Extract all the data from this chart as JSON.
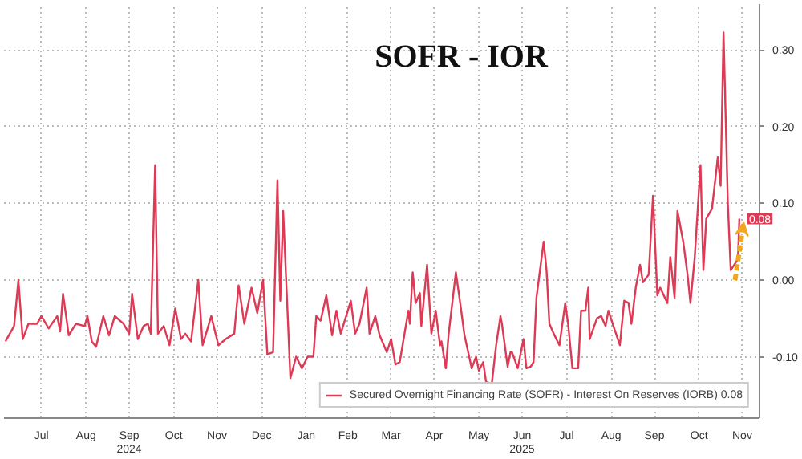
{
  "chart_data": {
    "type": "line",
    "title": "SOFR - IOR",
    "x": [
      "2024-06-21",
      "2024-06-27",
      "2024-06-30",
      "2024-07-03",
      "2024-07-07",
      "2024-07-13",
      "2024-07-16",
      "2024-07-21",
      "2024-07-27",
      "2024-07-29",
      "2024-07-31",
      "2024-08-04",
      "2024-08-09",
      "2024-08-15",
      "2024-08-17",
      "2024-08-20",
      "2024-08-23",
      "2024-08-28",
      "2024-09-01",
      "2024-09-05",
      "2024-09-11",
      "2024-09-15",
      "2024-09-17",
      "2024-09-21",
      "2024-09-25",
      "2024-09-28",
      "2024-09-30",
      "2024-10-03",
      "2024-10-05",
      "2024-10-09",
      "2024-10-13",
      "2024-10-17",
      "2024-10-21",
      "2024-10-24",
      "2024-10-28",
      "2024-11-02",
      "2024-11-05",
      "2024-11-11",
      "2024-11-16",
      "2024-11-21",
      "2024-11-27",
      "2024-11-30",
      "2024-12-04",
      "2024-12-09",
      "2024-12-13",
      "2024-12-17",
      "2024-12-20",
      "2024-12-24",
      "2024-12-27",
      "2024-12-29",
      "2024-12-31",
      "2025-01-03",
      "2025-01-05",
      "2025-01-09",
      "2025-01-13",
      "2025-01-17",
      "2025-01-21",
      "2025-01-23",
      "2025-01-26",
      "2025-01-30",
      "2025-02-03",
      "2025-02-06",
      "2025-02-09",
      "2025-02-16",
      "2025-02-19",
      "2025-02-22",
      "2025-02-27",
      "2025-03-01",
      "2025-03-05",
      "2025-03-08",
      "2025-03-13",
      "2025-03-16",
      "2025-03-19",
      "2025-03-22",
      "2025-03-28",
      "2025-03-29",
      "2025-03-31",
      "2025-04-02",
      "2025-04-05",
      "2025-04-06",
      "2025-04-10",
      "2025-04-13",
      "2025-04-16",
      "2025-04-19",
      "2025-04-20",
      "2025-04-23",
      "2025-04-25",
      "2025-04-30",
      "2025-05-03",
      "2025-05-06",
      "2025-05-11",
      "2025-05-14",
      "2025-05-16",
      "2025-05-19",
      "2025-05-21",
      "2025-05-25",
      "2025-05-28",
      "2025-05-31",
      "2025-06-01",
      "2025-06-05",
      "2025-06-07",
      "2025-06-08",
      "2025-06-12",
      "2025-06-16",
      "2025-06-18",
      "2025-06-21",
      "2025-06-23",
      "2025-06-25",
      "2025-06-30",
      "2025-07-02",
      "2025-07-04",
      "2025-07-07",
      "2025-07-11",
      "2025-07-15",
      "2025-07-17",
      "2025-07-20",
      "2025-07-24",
      "2025-07-26",
      "2025-07-29",
      "2025-07-31",
      "2025-08-01",
      "2025-08-06",
      "2025-08-09",
      "2025-08-12",
      "2025-08-14",
      "2025-08-18",
      "2025-08-22",
      "2025-08-25",
      "2025-08-28",
      "2025-08-30",
      "2025-09-02",
      "2025-09-05",
      "2025-09-07",
      "2025-09-11",
      "2025-09-14",
      "2025-09-17",
      "2025-09-19",
      "2025-09-24",
      "2025-09-26",
      "2025-09-29",
      "2025-10-01",
      "2025-10-05",
      "2025-10-08",
      "2025-10-10",
      "2025-10-13",
      "2025-10-17",
      "2025-10-19",
      "2025-10-21",
      "2025-10-25",
      "2025-10-29",
      "2025-10-31",
      "2025-11-02",
      "2025-11-05",
      "2025-11-07",
      "2025-11-12",
      "2025-11-13"
    ],
    "series": [
      {
        "name": "Secured Overnight Financing Rate (SOFR) - Interest On Reserves (IORB) 0.08",
        "color": "#dc3a55",
        "values": [
          -0.08,
          -0.06,
          0.0,
          -0.077,
          -0.057,
          -0.057,
          -0.047,
          -0.063,
          -0.047,
          -0.067,
          -0.018,
          -0.072,
          -0.057,
          -0.06,
          -0.047,
          -0.08,
          -0.087,
          -0.047,
          -0.072,
          -0.047,
          -0.057,
          -0.07,
          -0.018,
          -0.077,
          -0.06,
          -0.057,
          -0.07,
          0.15,
          -0.07,
          -0.06,
          -0.085,
          -0.037,
          -0.077,
          -0.07,
          -0.08,
          0.0,
          -0.085,
          -0.047,
          -0.085,
          -0.077,
          -0.07,
          -0.007,
          -0.057,
          -0.01,
          -0.043,
          0.0,
          -0.097,
          -0.094,
          0.13,
          -0.027,
          0.09,
          -0.04,
          -0.128,
          -0.1,
          -0.115,
          -0.1,
          -0.1,
          -0.047,
          -0.053,
          -0.02,
          -0.072,
          -0.04,
          -0.07,
          -0.027,
          -0.07,
          -0.057,
          -0.01,
          -0.07,
          -0.047,
          -0.072,
          -0.094,
          -0.077,
          -0.11,
          -0.107,
          -0.04,
          -0.057,
          0.01,
          -0.03,
          -0.017,
          -0.06,
          0.02,
          -0.07,
          -0.04,
          -0.085,
          -0.08,
          -0.115,
          -0.07,
          0.01,
          -0.03,
          -0.072,
          -0.115,
          -0.1,
          -0.118,
          -0.107,
          -0.133,
          -0.135,
          -0.085,
          -0.047,
          -0.057,
          -0.113,
          -0.094,
          -0.094,
          -0.115,
          -0.077,
          -0.115,
          -0.113,
          -0.107,
          -0.023,
          0.05,
          0.013,
          -0.057,
          -0.07,
          -0.085,
          -0.03,
          -0.057,
          -0.115,
          -0.115,
          -0.04,
          -0.04,
          -0.01,
          -0.077,
          -0.05,
          -0.047,
          -0.06,
          -0.04,
          -0.063,
          -0.085,
          -0.027,
          -0.03,
          -0.057,
          -0.01,
          0.02,
          -0.003,
          0.007,
          0.11,
          -0.02,
          -0.01,
          -0.03,
          0.03,
          -0.023,
          0.09,
          0.05,
          0.007,
          -0.03,
          0.03,
          0.15,
          0.013,
          0.08,
          0.093,
          0.16,
          0.123,
          0.323,
          0.1,
          0.013,
          0.027,
          0.08
        ],
        "value_labels": [
          null,
          null,
          null,
          null,
          null,
          null,
          null,
          null,
          null,
          null,
          null,
          null,
          null,
          null,
          null,
          null,
          null,
          null,
          null,
          null,
          null,
          null,
          null,
          null,
          null,
          null,
          null,
          null,
          null,
          null,
          null,
          null,
          null,
          null,
          null,
          null,
          null,
          null,
          null,
          null,
          null,
          null,
          null,
          null,
          null,
          null,
          null,
          null,
          null,
          null,
          null,
          null,
          null,
          null,
          null,
          null,
          null,
          null,
          null,
          null,
          null,
          null,
          null,
          null,
          null,
          null,
          null,
          null,
          null,
          null,
          null,
          null,
          null,
          null,
          null,
          null,
          null,
          null,
          null,
          null,
          null,
          null,
          null,
          null,
          null,
          null,
          null,
          null,
          null,
          null,
          null,
          null,
          null,
          null,
          null,
          null,
          null,
          null,
          null,
          null,
          null,
          null,
          null,
          null,
          null,
          null,
          null,
          null,
          null,
          null,
          null,
          null,
          null,
          null,
          null,
          null,
          null,
          null,
          null,
          null,
          null,
          null,
          null,
          null,
          null,
          null,
          null,
          null,
          null,
          null,
          null,
          null,
          null,
          null,
          null,
          null,
          null,
          null,
          null,
          null,
          null,
          null,
          null,
          null,
          null,
          null,
          null,
          null,
          null,
          null,
          null,
          null,
          null,
          null,
          null,
          "0.08"
        ]
      }
    ],
    "xlim": [
      "2024-06-20",
      "2025-11-27"
    ],
    "xticks": [
      {
        "value": "2024-07-16",
        "label": "Jul"
      },
      {
        "value": "2024-08-16",
        "label": "Aug"
      },
      {
        "value": "2024-09-15",
        "label": "Sep\n2024"
      },
      {
        "value": "2024-10-16",
        "label": "Oct"
      },
      {
        "value": "2024-11-15",
        "label": "Nov"
      },
      {
        "value": "2024-12-16",
        "label": "Dec"
      },
      {
        "value": "2025-01-16",
        "label": "Jan"
      },
      {
        "value": "2025-02-14",
        "label": "Feb"
      },
      {
        "value": "2025-03-16",
        "label": "Mar"
      },
      {
        "value": "2025-04-15",
        "label": "Apr"
      },
      {
        "value": "2025-05-16",
        "label": "May"
      },
      {
        "value": "2025-06-15",
        "label": "Jun\n2025"
      },
      {
        "value": "2025-07-16",
        "label": "Jul"
      },
      {
        "value": "2025-08-16",
        "label": "Aug"
      },
      {
        "value": "2025-09-15",
        "label": "Sep"
      },
      {
        "value": "2025-10-16",
        "label": "Oct"
      },
      {
        "value": "2025-11-15",
        "label": "Nov"
      }
    ],
    "ylim": [
      -0.18,
      0.36
    ],
    "yticks": [
      {
        "value": -0.1,
        "label": "-0.10"
      },
      {
        "value": 0.0,
        "label": "0.00"
      },
      {
        "value": 0.1,
        "label": "0.10"
      },
      {
        "value": 0.2,
        "label": "0.20"
      },
      {
        "value": 0.3,
        "label": "0.30"
      }
    ],
    "grid": true,
    "legend": "bottom right",
    "line_style": "solid"
  }
}
